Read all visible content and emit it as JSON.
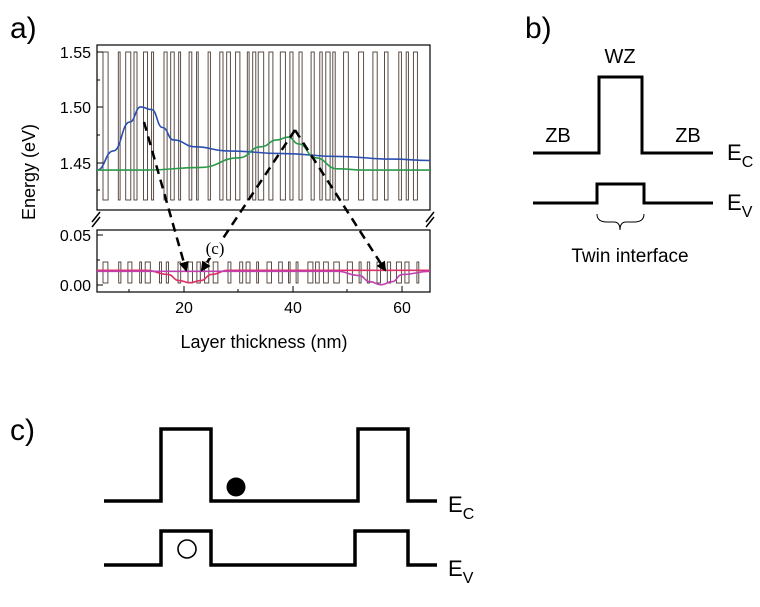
{
  "panel_a": {
    "label": "a)",
    "ylabel": "Energy (eV)",
    "xlabel": "Layer thickness (nm)",
    "annotation": "(c)",
    "y_ticks_top": [
      "1.55",
      "1.50",
      "1.45"
    ],
    "y_ticks_bottom": [
      "0.05",
      "0.00"
    ],
    "x_ticks": [
      "20",
      "40",
      "60"
    ]
  },
  "panel_b": {
    "label": "b)",
    "wz": "WZ",
    "zb_left": "ZB",
    "zb_right": "ZB",
    "ec": "E",
    "ec_sub": "C",
    "ev": "E",
    "ev_sub": "V",
    "caption": "Twin interface"
  },
  "panel_c": {
    "label": "c)",
    "ec": "E",
    "ec_sub": "C",
    "ev": "E",
    "ev_sub": "V"
  },
  "chart_data": {
    "type": "line",
    "xlabel": "Layer thickness (nm)",
    "ylabel": "Energy (eV)",
    "xlim": [
      6,
      67
    ],
    "ylim_upper": [
      1.43,
      1.55
    ],
    "ylim_lower": [
      -0.005,
      0.055
    ],
    "series": [
      {
        "color": "#2b4fb0",
        "x": [
          6,
          9,
          12,
          14,
          16,
          18,
          20,
          24,
          30,
          40,
          50,
          60,
          67
        ],
        "y": [
          1.459,
          1.473,
          1.494,
          1.505,
          1.503,
          1.49,
          1.481,
          1.476,
          1.473,
          1.471,
          1.469,
          1.467,
          1.466
        ]
      },
      {
        "color": "#2a9a4a",
        "x": [
          6,
          15,
          25,
          32,
          36,
          39,
          41,
          43,
          46,
          50,
          55,
          62,
          67
        ],
        "y": [
          1.459,
          1.459,
          1.461,
          1.468,
          1.476,
          1.481,
          1.483,
          1.478,
          1.468,
          1.46,
          1.459,
          1.459,
          1.459
        ]
      },
      {
        "color": "#e0306a",
        "x": [
          6,
          15,
          19,
          21,
          23,
          25,
          27,
          30,
          40,
          67
        ],
        "y": [
          0.016,
          0.016,
          0.012,
          0.006,
          0.004,
          0.006,
          0.012,
          0.016,
          0.016,
          0.016
        ]
      },
      {
        "color": "#c040b0",
        "x": [
          6,
          50,
          54,
          56,
          58,
          60,
          62,
          67
        ],
        "y": [
          0.015,
          0.015,
          0.011,
          0.005,
          0.002,
          0.005,
          0.012,
          0.015
        ]
      }
    ]
  }
}
